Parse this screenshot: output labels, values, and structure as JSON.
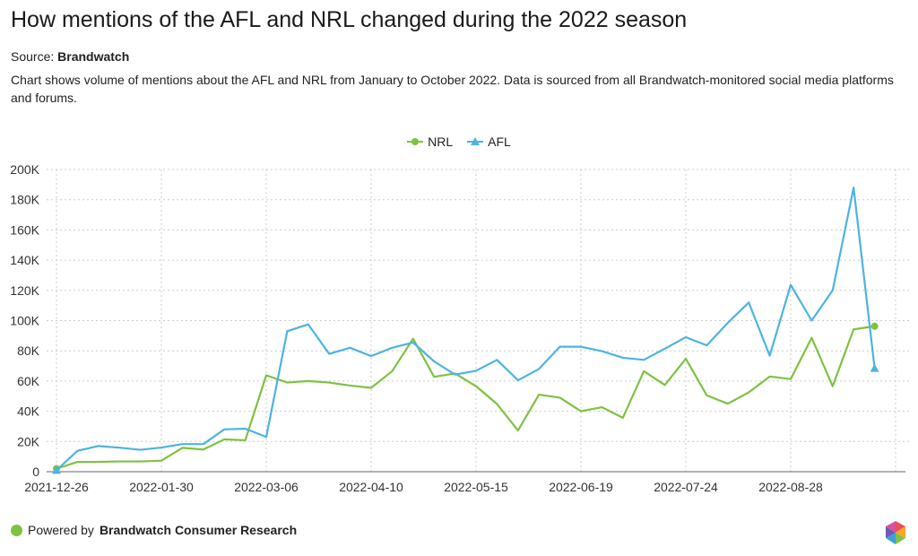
{
  "title": "How mentions of the AFL and NRL changed during the 2022 season",
  "source_label": "Source:",
  "source_name": "Brandwatch",
  "description": "Chart shows volume of mentions about the AFL and NRL from January to October 2022. Data is sourced from all Brandwatch-monitored social media platforms and forums.",
  "footer": {
    "prefix": "Powered by",
    "brand": "Brandwatch Consumer Research"
  },
  "colors": {
    "NRL": "#7dc242",
    "AFL": "#4db3e0"
  },
  "chart_data": {
    "type": "line",
    "title": "How mentions of the AFL and NRL changed during the 2022 season",
    "xlabel": "",
    "ylabel": "",
    "ylim": [
      0,
      200000
    ],
    "y_ticks": [
      "0",
      "20K",
      "40K",
      "60K",
      "80K",
      "100K",
      "120K",
      "140K",
      "160K",
      "180K",
      "200K"
    ],
    "x_tick_labels": [
      "2021-12-26",
      "2022-01-30",
      "2022-03-06",
      "2022-04-10",
      "2022-05-15",
      "2022-06-19",
      "2022-07-24",
      "2022-08-28"
    ],
    "legend": "top-center",
    "grid": true,
    "x": [
      "2021-12-26",
      "2022-01-02",
      "2022-01-09",
      "2022-01-16",
      "2022-01-23",
      "2022-01-30",
      "2022-02-06",
      "2022-02-13",
      "2022-02-20",
      "2022-02-27",
      "2022-03-06",
      "2022-03-13",
      "2022-03-20",
      "2022-03-27",
      "2022-04-03",
      "2022-04-10",
      "2022-04-17",
      "2022-04-24",
      "2022-05-01",
      "2022-05-08",
      "2022-05-15",
      "2022-05-22",
      "2022-05-29",
      "2022-06-05",
      "2022-06-12",
      "2022-06-19",
      "2022-06-26",
      "2022-07-03",
      "2022-07-10",
      "2022-07-17",
      "2022-07-24",
      "2022-07-31",
      "2022-08-07",
      "2022-08-14",
      "2022-08-21",
      "2022-08-28",
      "2022-09-04",
      "2022-09-11",
      "2022-09-18",
      "2022-09-25"
    ],
    "series": [
      {
        "name": "NRL",
        "marker": "circle",
        "values": [
          2000,
          6500,
          6500,
          6800,
          6800,
          7300,
          15800,
          14700,
          21400,
          20800,
          63800,
          59000,
          60000,
          59000,
          57000,
          55500,
          66500,
          88000,
          62800,
          65000,
          56600,
          44800,
          27300,
          51000,
          49000,
          40000,
          42700,
          35700,
          66500,
          57400,
          74800,
          50500,
          45000,
          52500,
          63000,
          61300,
          88600,
          56600,
          94200,
          96300
        ]
      },
      {
        "name": "AFL",
        "marker": "triangle",
        "values": [
          1000,
          13800,
          17000,
          15900,
          14500,
          16000,
          18300,
          18300,
          28000,
          28500,
          23000,
          93000,
          97500,
          78000,
          82000,
          76500,
          82000,
          85500,
          73000,
          64300,
          66800,
          74000,
          60500,
          68000,
          82700,
          82700,
          79800,
          75400,
          74000,
          81400,
          89000,
          83600,
          98500,
          112000,
          76800,
          123600,
          100000,
          120000,
          188000,
          68500
        ]
      }
    ]
  }
}
